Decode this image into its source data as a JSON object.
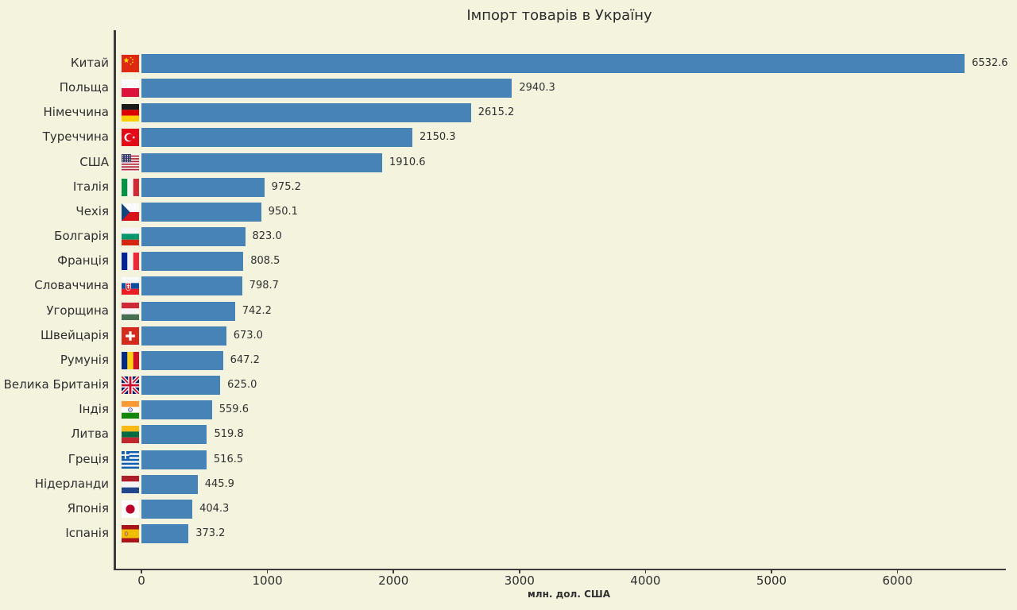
{
  "page": {
    "background_color": "#F4F4DE",
    "bar_color": "#4783B7",
    "axis_color": "#3B3B3B",
    "text_color": "#2F2F2F"
  },
  "chart_data": {
    "type": "bar",
    "orientation": "horizontal",
    "title": "Імпорт товарів в Україну",
    "xlabel": "млн. дол. США",
    "xlim": [
      0,
      6860
    ],
    "xticks": [
      0,
      1000,
      2000,
      3000,
      4000,
      5000,
      6000
    ],
    "grid": false,
    "legend": "none",
    "value_labels_shown": true,
    "categories": [
      "Китай",
      "Польща",
      "Німеччина",
      "Туреччина",
      "США",
      "Італія",
      "Чехія",
      "Болгарія",
      "Франція",
      "Словаччина",
      "Угорщина",
      "Швейцарія",
      "Румунія",
      "Велика Британія",
      "Індія",
      "Литва",
      "Греція",
      "Нідерланди",
      "Японія",
      "Іспанія"
    ],
    "values": [
      6532.6,
      2940.3,
      2615.2,
      2150.3,
      1910.6,
      975.2,
      950.1,
      823.0,
      808.5,
      798.7,
      742.2,
      673.0,
      647.2,
      625.0,
      559.6,
      519.8,
      516.5,
      445.9,
      404.3,
      373.2
    ],
    "flag_icons": [
      "china-flag-icon",
      "poland-flag-icon",
      "germany-flag-icon",
      "turkey-flag-icon",
      "usa-flag-icon",
      "italy-flag-icon",
      "czechia-flag-icon",
      "bulgaria-flag-icon",
      "france-flag-icon",
      "slovakia-flag-icon",
      "hungary-flag-icon",
      "switzerland-flag-icon",
      "romania-flag-icon",
      "uk-flag-icon",
      "india-flag-icon",
      "lithuania-flag-icon",
      "greece-flag-icon",
      "netherlands-flag-icon",
      "japan-flag-icon",
      "spain-flag-icon"
    ]
  }
}
